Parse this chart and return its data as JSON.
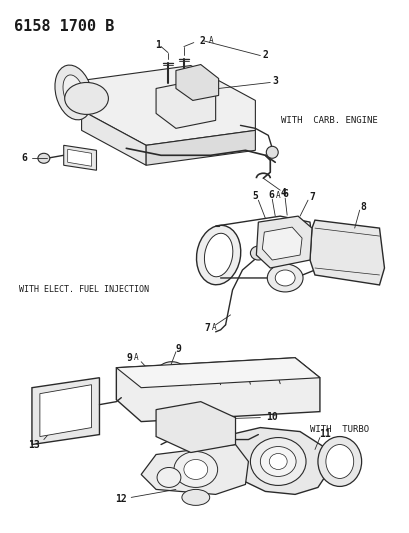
{
  "title": "6158 1700 B",
  "background_color": "#ffffff",
  "line_color": "#2a2a2a",
  "text_color": "#1a1a1a",
  "fig_width": 4.1,
  "fig_height": 5.33,
  "dpi": 100,
  "labels": {
    "top_right": "WITH  CARB. ENGINE",
    "mid_left": "WITH ELECT. FUEL INJECTION",
    "bot_right": "WITH  TURBO"
  }
}
